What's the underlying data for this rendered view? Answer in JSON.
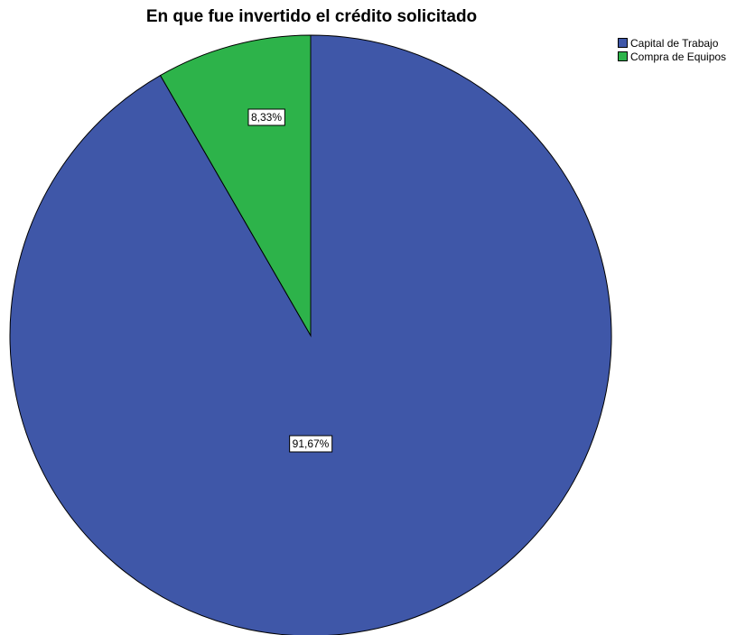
{
  "chart_data": {
    "type": "pie",
    "title": "En que fue invertido el crédito solicitado",
    "categories": [
      "Capital de Trabajo",
      "Compra de Equipos"
    ],
    "values": [
      91.67,
      8.33
    ],
    "data_labels": [
      "91,67%",
      "8,33%"
    ],
    "colors": [
      "#3F57A8",
      "#2DB34A"
    ],
    "legend_placement": "top-right",
    "start": "top",
    "direction": "clockwise"
  }
}
